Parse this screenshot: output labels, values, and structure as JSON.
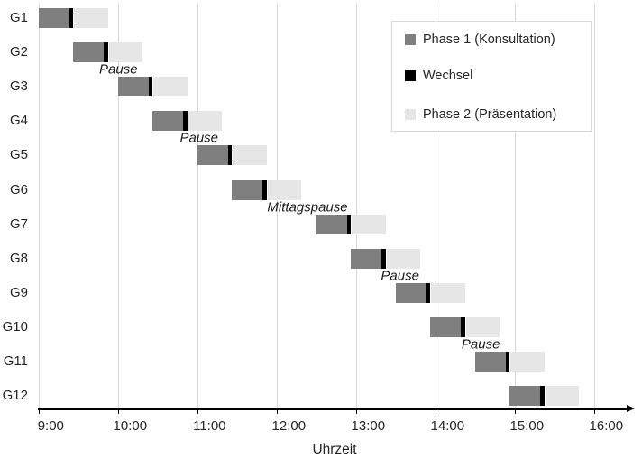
{
  "colors": {
    "phase1": "#7f7f7f",
    "wechsel": "#000000",
    "phase2": "#e6e6e6",
    "gridline": "#d9d9d9",
    "axis": "#000000",
    "text": "#262626",
    "legend_border": "#d9d9d9",
    "background": "#ffffff"
  },
  "chart_data": {
    "type": "bar",
    "variant": "horizontal-stacked-gantt",
    "title": "",
    "xlabel": "Uhrzeit",
    "grid": true,
    "legend_position": "top-right",
    "x_axis": {
      "tick_labels": [
        "9:00",
        "10:00",
        "11:00",
        "12:00",
        "13:00",
        "14:00",
        "15:00",
        "16:00"
      ],
      "range": [
        "9:00",
        "16:00"
      ]
    },
    "categories": [
      "G1",
      "G2",
      "G3",
      "G4",
      "G5",
      "G6",
      "G7",
      "G8",
      "G9",
      "G10",
      "G11",
      "G12"
    ],
    "segment_minutes": {
      "phase1": 23,
      "wechsel": 3,
      "phase2": 26
    },
    "groups": [
      {
        "label": "G1",
        "start": "09:00",
        "wechsel_start": "09:23",
        "phase2_start": "09:26",
        "end": "09:52"
      },
      {
        "label": "G2",
        "start": "09:26",
        "wechsel_start": "09:49",
        "phase2_start": "09:52",
        "end": "10:18"
      },
      {
        "label": "G3",
        "start": "10:00",
        "wechsel_start": "10:23",
        "phase2_start": "10:26",
        "end": "10:52"
      },
      {
        "label": "G4",
        "start": "10:26",
        "wechsel_start": "10:49",
        "phase2_start": "10:52",
        "end": "11:18"
      },
      {
        "label": "G5",
        "start": "11:00",
        "wechsel_start": "11:23",
        "phase2_start": "11:26",
        "end": "11:52"
      },
      {
        "label": "G6",
        "start": "11:26",
        "wechsel_start": "11:49",
        "phase2_start": "11:52",
        "end": "12:18"
      },
      {
        "label": "G7",
        "start": "12:30",
        "wechsel_start": "12:53",
        "phase2_start": "12:56",
        "end": "13:22"
      },
      {
        "label": "G8",
        "start": "12:56",
        "wechsel_start": "13:19",
        "phase2_start": "13:22",
        "end": "13:48"
      },
      {
        "label": "G9",
        "start": "13:30",
        "wechsel_start": "13:53",
        "phase2_start": "13:56",
        "end": "14:22"
      },
      {
        "label": "G10",
        "start": "13:56",
        "wechsel_start": "14:19",
        "phase2_start": "14:22",
        "end": "14:48"
      },
      {
        "label": "G11",
        "start": "14:30",
        "wechsel_start": "14:53",
        "phase2_start": "14:56",
        "end": "15:22"
      },
      {
        "label": "G12",
        "start": "14:56",
        "wechsel_start": "15:19",
        "phase2_start": "15:22",
        "end": "15:48"
      }
    ],
    "legend": [
      {
        "label": "Phase 1 (Konsultation)",
        "color": "#7f7f7f"
      },
      {
        "label": "Wechsel",
        "color": "#000000"
      },
      {
        "label": "Phase 2 (Präsentation)",
        "color": "#e6e6e6"
      }
    ],
    "annotations": [
      {
        "label": "Pause",
        "after_row": "G2",
        "at_time": "10:00"
      },
      {
        "label": "Pause",
        "after_row": "G4",
        "at_time": "11:01"
      },
      {
        "label": "Mittagspause",
        "after_row": "G6",
        "at_time": "12:23"
      },
      {
        "label": "Pause",
        "after_row": "G8",
        "at_time": "13:33"
      },
      {
        "label": "Pause",
        "after_row": "G10",
        "at_time": "14:34"
      }
    ]
  }
}
